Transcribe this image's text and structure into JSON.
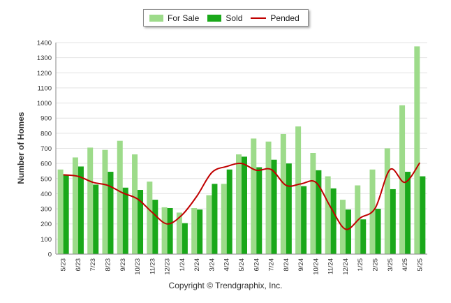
{
  "chart_data": {
    "type": "bar",
    "ylabel": "Number of Homes",
    "ylim": [
      0,
      1400
    ],
    "yticks": [
      0,
      100,
      200,
      300,
      400,
      500,
      600,
      700,
      800,
      900,
      1000,
      1100,
      1200,
      1300,
      1400
    ],
    "grid": true,
    "legend_position": "top-center",
    "categories": [
      "5/23",
      "6/23",
      "7/23",
      "8/23",
      "9/23",
      "10/23",
      "11/23",
      "12/23",
      "1/24",
      "2/24",
      "3/24",
      "4/24",
      "5/24",
      "6/24",
      "7/24",
      "8/24",
      "9/24",
      "10/24",
      "11/24",
      "12/24",
      "1/25",
      "2/25",
      "3/25",
      "4/25",
      "5/25"
    ],
    "series": [
      {
        "name": "For Sale",
        "type": "bar",
        "color": "#9ddb8a",
        "values": [
          560,
          640,
          705,
          690,
          750,
          660,
          480,
          310,
          275,
          305,
          390,
          465,
          660,
          765,
          745,
          795,
          845,
          670,
          515,
          360,
          455,
          560,
          700,
          985,
          1375
        ]
      },
      {
        "name": "Sold",
        "type": "bar",
        "color": "#1aa81a",
        "values": [
          525,
          580,
          460,
          545,
          440,
          425,
          360,
          305,
          205,
          295,
          465,
          560,
          645,
          575,
          625,
          600,
          450,
          555,
          435,
          295,
          230,
          300,
          430,
          545,
          515
        ]
      },
      {
        "name": "Pended",
        "type": "line",
        "color": "#c00000",
        "values": [
          525,
          515,
          475,
          455,
          405,
          365,
          275,
          200,
          260,
          385,
          540,
          580,
          600,
          555,
          560,
          455,
          465,
          475,
          310,
          165,
          240,
          305,
          560,
          475,
          605
        ]
      }
    ]
  },
  "legend": {
    "for_sale": "For Sale",
    "sold": "Sold",
    "pended": "Pended"
  },
  "footer": {
    "copyright": "Copyright © Trendgraphix, Inc."
  }
}
